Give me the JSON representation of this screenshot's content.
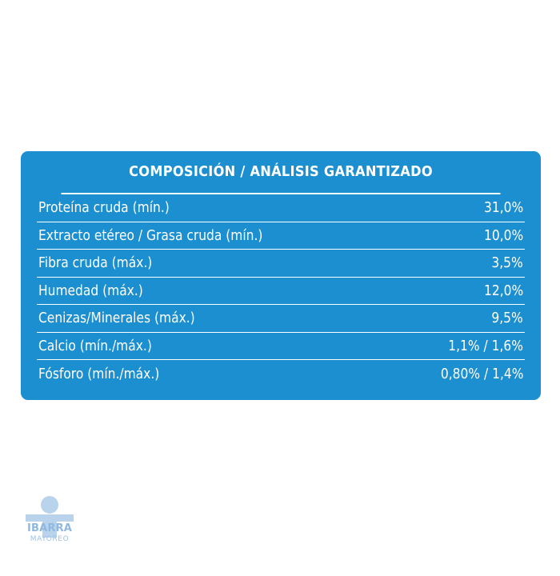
{
  "table": {
    "title": "COMPOSICIÓN / ANÁLISIS GARANTIZADO",
    "rows": [
      {
        "label": "Proteína cruda (mín.)",
        "value": "31,0%"
      },
      {
        "label": "Extracto etéreo / Grasa cruda (mín.)",
        "value": "10,0%"
      },
      {
        "label": "Fibra cruda (máx.)",
        "value": "3,5%"
      },
      {
        "label": "Humedad (máx.)",
        "value": "12,0%"
      },
      {
        "label": "Cenizas/Minerales (máx.)",
        "value": "9,5%"
      },
      {
        "label": "Calcio (mín./máx.)",
        "value": "1,1% / 1,6%"
      },
      {
        "label": "Fósforo (mín./máx.)",
        "value": "0,80% / 1,4%"
      }
    ]
  },
  "logo": {
    "name": "IBARRA",
    "subtitle": "MAYOREO",
    "icon": "person-icon"
  },
  "colors": {
    "panel": "#1c8fd0",
    "text": "#ffffff",
    "logo": "#b9d3ec"
  }
}
